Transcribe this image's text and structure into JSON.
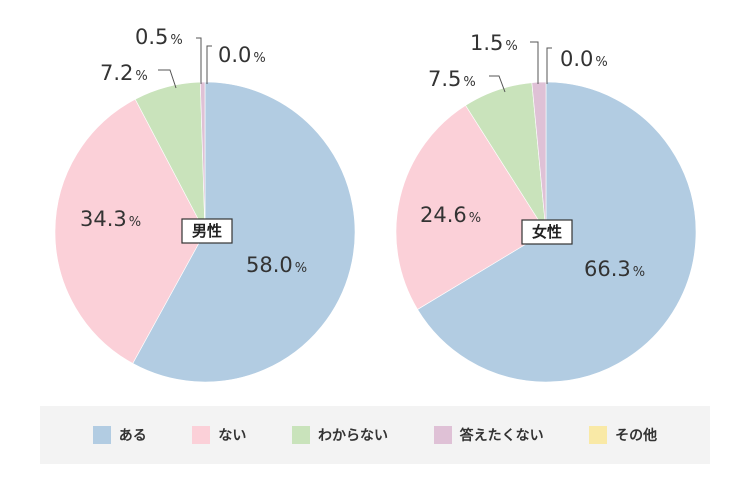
{
  "chart_data": [
    {
      "type": "pie",
      "center_label": "男性",
      "categories": [
        "ある",
        "ない",
        "わからない",
        "答えたくない",
        "その他"
      ],
      "values": [
        58.0,
        34.3,
        7.2,
        0.5,
        0.0
      ],
      "value_labels": [
        "58.0",
        "34.3",
        "7.2",
        "0.5",
        "0.0"
      ],
      "unit": "%"
    },
    {
      "type": "pie",
      "center_label": "女性",
      "categories": [
        "ある",
        "ない",
        "わからない",
        "答えたくない",
        "その他"
      ],
      "values": [
        66.3,
        24.6,
        7.5,
        1.5,
        0.0
      ],
      "value_labels": [
        "66.3",
        "24.6",
        "7.5",
        "1.5",
        "0.0"
      ],
      "unit": "%"
    }
  ],
  "legend": [
    {
      "label": "ある",
      "color": "#b2cce2"
    },
    {
      "label": "ない",
      "color": "#fbd0d8"
    },
    {
      "label": "わからない",
      "color": "#c9e3bb"
    },
    {
      "label": "答えたくない",
      "color": "#dfc1d6"
    },
    {
      "label": "その他",
      "color": "#f9e9a6"
    }
  ]
}
